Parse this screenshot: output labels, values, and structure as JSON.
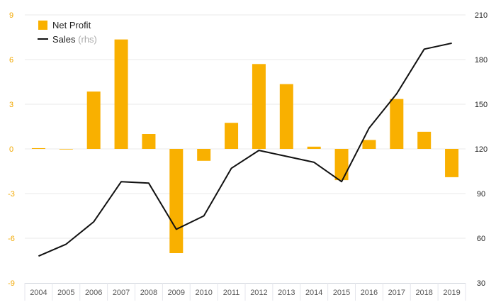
{
  "chart_data": {
    "type": "bar",
    "categories": [
      "2004",
      "2005",
      "2006",
      "2007",
      "2008",
      "2009",
      "2010",
      "2011",
      "2012",
      "2013",
      "2014",
      "2015",
      "2016",
      "2017",
      "2018",
      "2019"
    ],
    "series": [
      {
        "name": "Net Profit",
        "type": "bar",
        "axis": "left",
        "color": "#f9b000",
        "values": [
          0.05,
          0.0,
          3.85,
          7.35,
          1.0,
          -7.0,
          -0.8,
          1.75,
          5.7,
          4.35,
          0.15,
          -2.1,
          0.6,
          3.35,
          1.15,
          -1.9
        ]
      },
      {
        "name": "Sales",
        "name_note": "(rhs)",
        "type": "line",
        "axis": "right",
        "color": "#111111",
        "values": [
          48,
          56,
          71,
          98,
          97,
          66,
          75,
          107,
          119,
          115,
          111,
          98,
          134,
          157,
          187,
          191
        ]
      }
    ],
    "y_left": {
      "ylim": [
        -9,
        9
      ],
      "ticks": [
        "9",
        "6",
        "3",
        "0",
        "-3",
        "-6",
        "-9"
      ],
      "tick_values": [
        9,
        6,
        3,
        0,
        -3,
        -6,
        -9
      ],
      "color": "#f2a800"
    },
    "y_right": {
      "ylim": [
        30,
        210
      ],
      "ticks": [
        "210",
        "180",
        "150",
        "120",
        "90",
        "60",
        "30"
      ],
      "tick_values": [
        210,
        180,
        150,
        120,
        90,
        60,
        30
      ],
      "color": "#222222"
    },
    "grid": true,
    "legend_position": "top-left"
  }
}
